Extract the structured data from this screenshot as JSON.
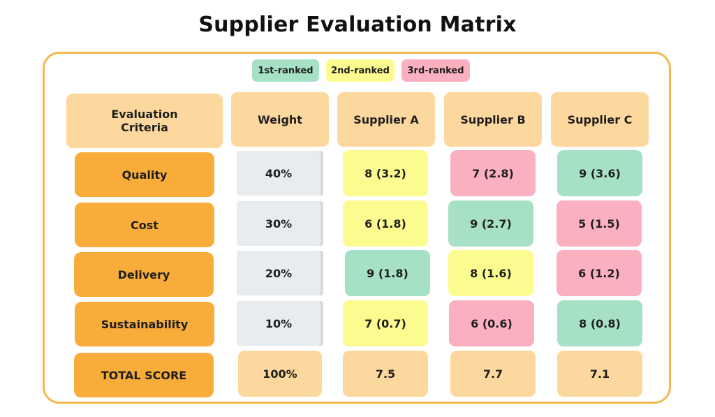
{
  "title": "Supplier Evaluation Matrix",
  "legend": [
    {
      "label": "1st-ranked",
      "color": "#a6e1c5"
    },
    {
      "label": "2nd-ranked",
      "color": "#fbfb8f"
    },
    {
      "label": "3rd-ranked",
      "color": "#fbb0c0"
    }
  ],
  "headers": [
    "Evaluation Criteria",
    "Weight",
    "Supplier A",
    "Supplier B",
    "Supplier C"
  ],
  "rows": [
    {
      "criterion": "Quality",
      "weight": "40%",
      "scores": [
        {
          "text": "8 (3.2)",
          "rank": 2
        },
        {
          "text": "7 (2.8)",
          "rank": 3
        },
        {
          "text": "9 (3.6)",
          "rank": 1
        }
      ]
    },
    {
      "criterion": "Cost",
      "weight": "30%",
      "scores": [
        {
          "text": "6 (1.8)",
          "rank": 2
        },
        {
          "text": "9 (2.7)",
          "rank": 1
        },
        {
          "text": "5 (1.5)",
          "rank": 3
        }
      ]
    },
    {
      "criterion": "Delivery",
      "weight": "20%",
      "scores": [
        {
          "text": "9 (1.8)",
          "rank": 1
        },
        {
          "text": "8 (1.6)",
          "rank": 2
        },
        {
          "text": "6 (1.2)",
          "rank": 3
        }
      ]
    },
    {
      "criterion": "Sustainability",
      "weight": "10%",
      "scores": [
        {
          "text": "7 (0.7)",
          "rank": 2
        },
        {
          "text": "6 (0.6)",
          "rank": 3
        },
        {
          "text": "8 (0.8)",
          "rank": 1
        }
      ]
    }
  ],
  "total": {
    "label": "TOTAL SCORE",
    "weight": "100%",
    "scores": [
      "7.5",
      "7.7",
      "7.1"
    ]
  },
  "colors": {
    "frame": "#f6b84e",
    "header": "#fdd89e",
    "criterion": "#f8ad3a",
    "weight": "#e9ecef",
    "first": "#a6e1c5",
    "second": "#fbfb8f",
    "third": "#fbb0c0"
  }
}
